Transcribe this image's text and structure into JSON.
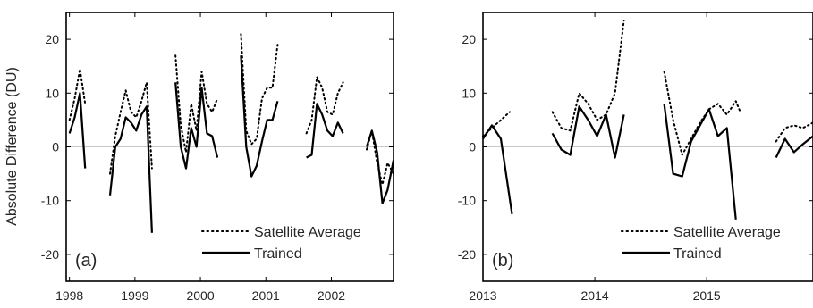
{
  "chart_data": [
    {
      "type": "line",
      "panel_label": "(a)",
      "ylabel": "Absolute Difference (DU)",
      "xlim": [
        1997.95,
        2002.95
      ],
      "ylim": [
        -25,
        25
      ],
      "xticks": [
        1998,
        1999,
        2000,
        2001,
        2002
      ],
      "yticks": [
        -20,
        -10,
        0,
        10,
        20
      ],
      "zero_line": true,
      "legend_position": "bottom-right",
      "series": [
        {
          "name": "Satellite Average",
          "style": "dotted",
          "color": "#000000",
          "segments": [
            [
              [
                1998.0,
                5
              ],
              [
                1998.08,
                9
              ],
              [
                1998.16,
                14.5
              ],
              [
                1998.24,
                8
              ]
            ],
            [
              [
                1998.62,
                -5
              ],
              [
                1998.7,
                2
              ],
              [
                1998.78,
                6.5
              ],
              [
                1998.86,
                10.5
              ],
              [
                1998.94,
                6.5
              ],
              [
                1999.02,
                5.5
              ],
              [
                1999.1,
                8.5
              ],
              [
                1999.18,
                12
              ],
              [
                1999.26,
                -4
              ]
            ],
            [
              [
                1999.62,
                17
              ],
              [
                1999.7,
                4
              ],
              [
                1999.78,
                -1
              ],
              [
                1999.86,
                8
              ],
              [
                1999.94,
                3
              ],
              [
                2000.02,
                14
              ],
              [
                2000.1,
                8
              ],
              [
                2000.18,
                6.5
              ],
              [
                2000.26,
                9
              ]
            ],
            [
              [
                2000.62,
                21
              ],
              [
                2000.7,
                3
              ],
              [
                2000.78,
                0.5
              ],
              [
                2000.86,
                1.5
              ],
              [
                2000.94,
                9
              ],
              [
                2001.02,
                11
              ],
              [
                2001.1,
                11
              ],
              [
                2001.18,
                19
              ]
            ],
            [
              [
                2001.62,
                2.5
              ],
              [
                2001.7,
                5
              ],
              [
                2001.78,
                13
              ],
              [
                2001.86,
                11
              ],
              [
                2001.94,
                6.5
              ],
              [
                2002.02,
                6
              ],
              [
                2002.1,
                10
              ],
              [
                2002.18,
                12
              ]
            ],
            [
              [
                2002.54,
                -0.5
              ],
              [
                2002.62,
                3
              ],
              [
                2002.7,
                -3
              ],
              [
                2002.78,
                -7
              ],
              [
                2002.86,
                -3
              ],
              [
                2002.95,
                -5
              ]
            ]
          ]
        },
        {
          "name": "Trained",
          "style": "solid",
          "color": "#000000",
          "segments": [
            [
              [
                1998.0,
                2.5
              ],
              [
                1998.08,
                5.5
              ],
              [
                1998.16,
                10
              ],
              [
                1998.24,
                -4
              ]
            ],
            [
              [
                1998.62,
                -9
              ],
              [
                1998.7,
                0
              ],
              [
                1998.78,
                1.5
              ],
              [
                1998.86,
                5.5
              ],
              [
                1998.94,
                4.5
              ],
              [
                1999.02,
                3
              ],
              [
                1999.1,
                6
              ],
              [
                1999.18,
                7.5
              ],
              [
                1999.26,
                -16
              ]
            ],
            [
              [
                1999.62,
                12
              ],
              [
                1999.7,
                0
              ],
              [
                1999.78,
                -4
              ],
              [
                1999.86,
                3.5
              ],
              [
                1999.94,
                0
              ],
              [
                2000.02,
                11
              ],
              [
                2000.1,
                2.5
              ],
              [
                2000.18,
                2
              ],
              [
                2000.26,
                -2
              ]
            ],
            [
              [
                2000.62,
                17
              ],
              [
                2000.7,
                0
              ],
              [
                2000.78,
                -5.5
              ],
              [
                2000.86,
                -3.5
              ],
              [
                2000.94,
                1
              ],
              [
                2001.02,
                5
              ],
              [
                2001.1,
                5
              ],
              [
                2001.18,
                8.5
              ]
            ],
            [
              [
                2001.62,
                -2
              ],
              [
                2001.7,
                -1.5
              ],
              [
                2001.78,
                8
              ],
              [
                2001.86,
                6
              ],
              [
                2001.94,
                3
              ],
              [
                2002.02,
                2
              ],
              [
                2002.1,
                4.5
              ],
              [
                2002.18,
                2.5
              ]
            ],
            [
              [
                2002.54,
                0
              ],
              [
                2002.62,
                3
              ],
              [
                2002.7,
                -1
              ],
              [
                2002.78,
                -10.5
              ],
              [
                2002.86,
                -8
              ],
              [
                2002.95,
                -2.5
              ]
            ]
          ]
        }
      ]
    },
    {
      "type": "line",
      "panel_label": "(b)",
      "ylabel": "",
      "xlim": [
        2013,
        2015.95
      ],
      "ylim": [
        -25,
        25
      ],
      "xticks": [
        2013,
        2014,
        2015
      ],
      "yticks": [
        -20,
        -10,
        0,
        10,
        20
      ],
      "zero_line": true,
      "legend_position": "bottom-right",
      "series": [
        {
          "name": "Satellite Average",
          "style": "dotted",
          "color": "#000000",
          "segments": [
            [
              [
                2013.0,
                2
              ],
              [
                2013.08,
                3.5
              ],
              [
                2013.16,
                5
              ],
              [
                2013.24,
                6.5
              ]
            ],
            [
              [
                2013.62,
                6.5
              ],
              [
                2013.7,
                3.5
              ],
              [
                2013.78,
                3
              ],
              [
                2013.86,
                10
              ],
              [
                2013.94,
                8
              ],
              [
                2014.02,
                5
              ],
              [
                2014.1,
                6
              ],
              [
                2014.18,
                10
              ],
              [
                2014.26,
                23.5
              ]
            ],
            [
              [
                2014.62,
                14
              ],
              [
                2014.7,
                5
              ],
              [
                2014.78,
                -1.5
              ],
              [
                2014.86,
                1.5
              ],
              [
                2014.94,
                4.5
              ],
              [
                2015.02,
                7
              ],
              [
                2015.1,
                8
              ],
              [
                2015.18,
                6
              ],
              [
                2015.26,
                8.5
              ],
              [
                2015.3,
                6.5
              ]
            ],
            [
              [
                2015.62,
                1
              ],
              [
                2015.7,
                3.5
              ],
              [
                2015.78,
                4
              ],
              [
                2015.86,
                3.5
              ],
              [
                2015.95,
                4.5
              ]
            ]
          ]
        },
        {
          "name": "Trained",
          "style": "solid",
          "color": "#000000",
          "segments": [
            [
              [
                2013.0,
                1.5
              ],
              [
                2013.08,
                4
              ],
              [
                2013.16,
                1.5
              ],
              [
                2013.26,
                -12.5
              ]
            ],
            [
              [
                2013.62,
                2.5
              ],
              [
                2013.7,
                -0.5
              ],
              [
                2013.78,
                -1.5
              ],
              [
                2013.86,
                7.5
              ],
              [
                2013.94,
                5
              ],
              [
                2014.02,
                2
              ],
              [
                2014.1,
                6
              ],
              [
                2014.18,
                -2
              ],
              [
                2014.26,
                6
              ]
            ],
            [
              [
                2014.62,
                8
              ],
              [
                2014.7,
                -5
              ],
              [
                2014.78,
                -5.5
              ],
              [
                2014.86,
                1
              ],
              [
                2014.94,
                4
              ],
              [
                2015.02,
                7
              ],
              [
                2015.1,
                2
              ],
              [
                2015.18,
                3.5
              ],
              [
                2015.26,
                -13.5
              ]
            ],
            [
              [
                2015.62,
                -2
              ],
              [
                2015.7,
                1.5
              ],
              [
                2015.78,
                -1
              ],
              [
                2015.86,
                0.5
              ],
              [
                2015.95,
                2
              ]
            ]
          ]
        }
      ]
    }
  ]
}
